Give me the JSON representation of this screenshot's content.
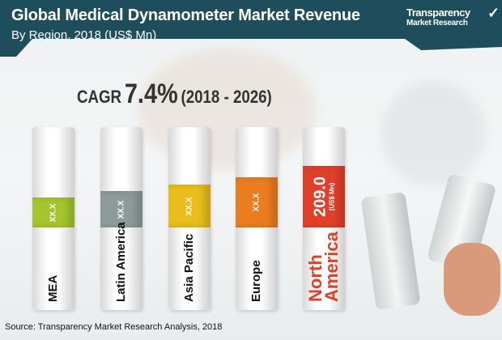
{
  "header": {
    "title": "Global Medical Dynamometer Market Revenue",
    "subtitle": "By Region, 2018 (US$ Mn)"
  },
  "logo": {
    "line1": "Transparency",
    "line2": "Market Research"
  },
  "cagr": {
    "label": "CAGR",
    "value": "7.4%",
    "period": "(2018 - 2026)"
  },
  "chart_data": {
    "type": "bar",
    "title": "Global Medical Dynamometer Market Revenue",
    "subtitle": "By Region, 2018 (US$ Mn)",
    "categories": [
      "MEA",
      "Latin America",
      "Asia Pacific",
      "Europe",
      "North America"
    ],
    "values": [
      null,
      null,
      null,
      null,
      209.0
    ],
    "value_labels": [
      "XX.X",
      "XX.X",
      "XX.X",
      "XX.X",
      "209.0"
    ],
    "unit_label": "(US$ Mn)",
    "colors": [
      "#a4c52c",
      "#8e9a99",
      "#e8bd1c",
      "#ea7d1f",
      "#e0402a"
    ]
  },
  "source": "Source: Transparency Market Research Analysis, 2018"
}
